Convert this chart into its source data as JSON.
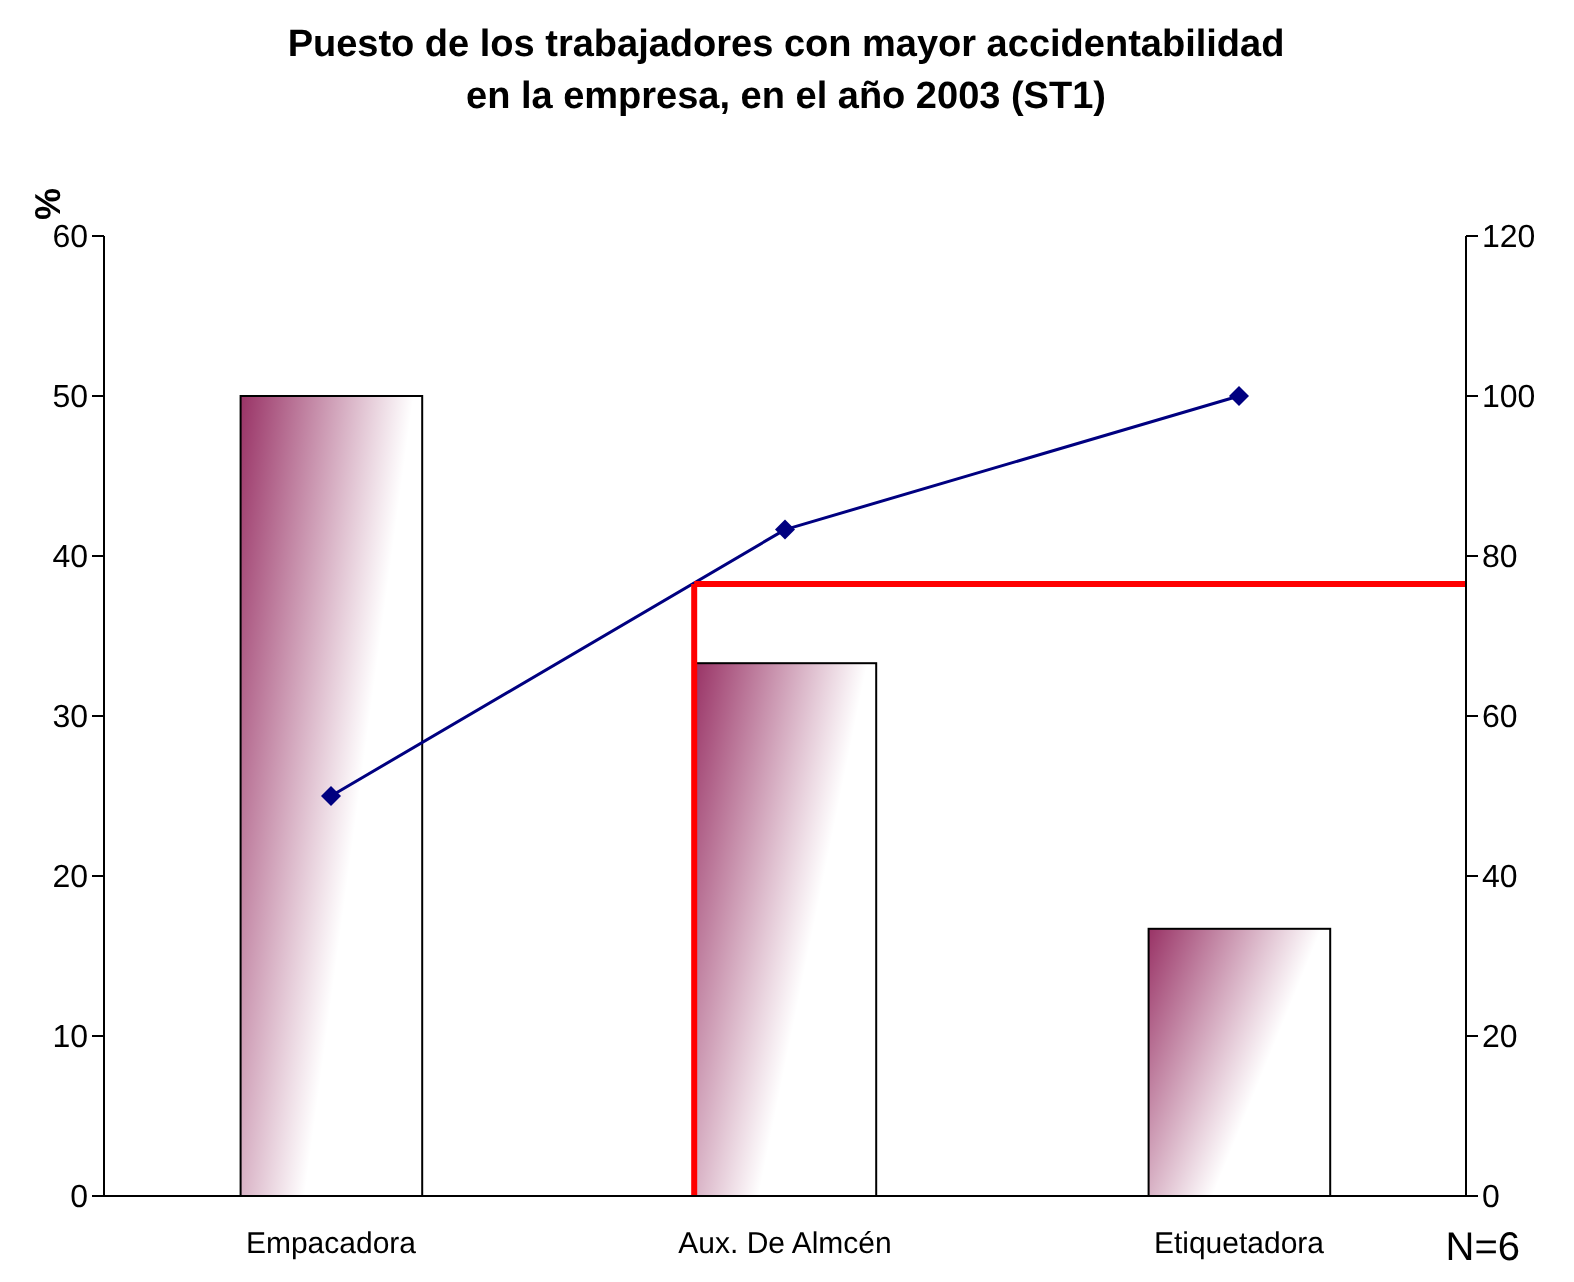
{
  "chart_data": {
    "type": "bar",
    "title": "Puesto de los trabajadores con mayor accidentabilidad\nen la empresa, en el año 2003 (ST1)",
    "ylabel": "%",
    "categories": [
      "Empacadora",
      "Aux. De Almcén",
      "Etiquetadora"
    ],
    "series": [
      {
        "color": "#993366",
        "values": [
          50,
          33.3,
          16.7
        ]
      },
      {
        "type": "line",
        "axis": "y2",
        "color": "#000080",
        "values": [
          50,
          83.3,
          100
        ]
      }
    ],
    "ref_lines": [
      {
        "axis": "x",
        "value": "Aux. De Almcén",
        "color": "#ff0000"
      },
      {
        "axis": "y2",
        "value": 76.5,
        "color": "#ff0000"
      }
    ],
    "ylim": [
      0,
      60
    ],
    "yticks": [
      0,
      10,
      20,
      30,
      40,
      50,
      60
    ],
    "y2lim": [
      0,
      120
    ],
    "y2ticks": [
      0,
      20,
      40,
      60,
      80,
      100,
      120
    ],
    "marker": "diamond",
    "grid": false,
    "annotations": [
      "N=6"
    ]
  }
}
